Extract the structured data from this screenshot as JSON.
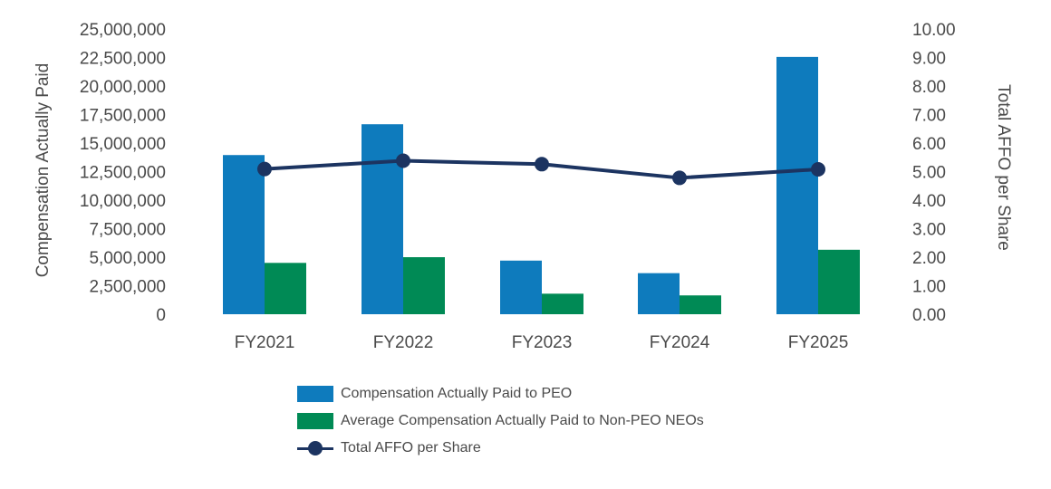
{
  "colors": {
    "peo": "#0e7bbd",
    "neo": "#008a55",
    "affo": "#1c3461",
    "text": "#4a4a4a"
  },
  "chart_data": {
    "type": "bar",
    "categories": [
      "FY2021",
      "FY2022",
      "FY2023",
      "FY2024",
      "FY2025"
    ],
    "series": [
      {
        "name": "Compensation Actually Paid to PEO",
        "axis": "left",
        "kind": "bar",
        "values": [
          13950000,
          16650000,
          4700000,
          3600000,
          22550000
        ]
      },
      {
        "name": "Average Compensation Actually Paid to Non-PEO NEOs",
        "axis": "left",
        "kind": "bar",
        "values": [
          4500000,
          5000000,
          1800000,
          1650000,
          5650000
        ]
      },
      {
        "name": "Total AFFO per Share",
        "axis": "right",
        "kind": "line",
        "values": [
          5.09,
          5.38,
          5.26,
          4.78,
          5.08
        ]
      }
    ],
    "left_axis": {
      "label": "Compensation Actually Paid",
      "range": [
        0,
        25000000
      ],
      "ticks": [
        "0",
        "2,500,000",
        "5,000,000",
        "7,500,000",
        "10,000,000",
        "12,500,000",
        "15,000,000",
        "17,500,000",
        "20,000,000",
        "22,500,000",
        "25,000,000"
      ]
    },
    "right_axis": {
      "label": "Total AFFO per Share",
      "range": [
        0,
        10
      ],
      "ticks": [
        "0.00",
        "1.00",
        "2.00",
        "3.00",
        "4.00",
        "5.00",
        "6.00",
        "7.00",
        "8.00",
        "9.00",
        "10.00"
      ]
    },
    "legend": {
      "placement": "bottom",
      "items": [
        {
          "label": "Compensation Actually Paid to PEO",
          "kind": "bar"
        },
        {
          "label": "Average Compensation Actually Paid to Non-PEO NEOs",
          "kind": "bar"
        },
        {
          "label": "Total AFFO per Share",
          "kind": "line"
        }
      ]
    },
    "grid": false
  }
}
